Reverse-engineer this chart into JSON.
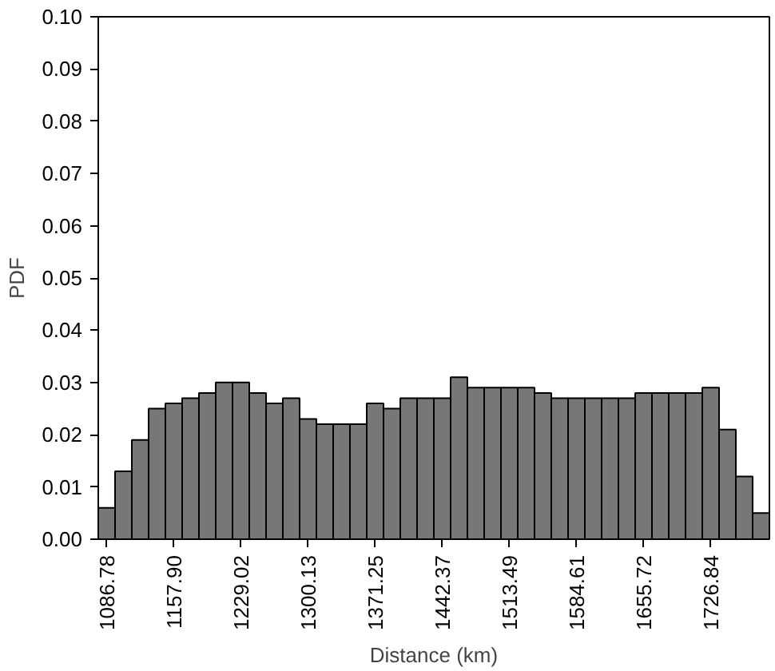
{
  "chart_data": {
    "type": "histogram",
    "xlabel": "Distance (km)",
    "ylabel": "PDF",
    "color": "#777777",
    "bins": [
      1077.89,
      1095.67,
      1113.45,
      1131.22,
      1149.0,
      1166.78,
      1184.56,
      1202.33,
      1220.11,
      1237.89,
      1255.67,
      1273.44,
      1291.22,
      1309.0,
      1326.78,
      1344.55,
      1362.33,
      1380.11,
      1397.89,
      1415.66,
      1433.44,
      1451.22,
      1469.0,
      1486.77,
      1504.55,
      1522.33,
      1540.11,
      1557.88,
      1575.66,
      1593.44,
      1611.22,
      1628.99,
      1646.77,
      1664.55,
      1682.33,
      1700.1,
      1717.88,
      1735.66,
      1753.44,
      1771.21,
      1788.99
    ],
    "values": [
      0.006,
      0.013,
      0.019,
      0.025,
      0.026,
      0.027,
      0.028,
      0.03,
      0.03,
      0.028,
      0.026,
      0.027,
      0.023,
      0.022,
      0.022,
      0.022,
      0.026,
      0.025,
      0.027,
      0.027,
      0.027,
      0.031,
      0.029,
      0.029,
      0.029,
      0.029,
      0.028,
      0.027,
      0.027,
      0.027,
      0.027,
      0.027,
      0.028,
      0.028,
      0.028,
      0.028,
      0.029,
      0.021,
      0.012,
      0.005
    ],
    "xlim": [
      1077.89,
      1788.99
    ],
    "ylim": [
      0,
      0.1
    ],
    "xticks": [
      {
        "value": 1086.78,
        "label": "1086.78"
      },
      {
        "value": 1157.9,
        "label": "1157.90"
      },
      {
        "value": 1229.02,
        "label": "1229.02"
      },
      {
        "value": 1300.13,
        "label": "1300.13"
      },
      {
        "value": 1371.25,
        "label": "1371.25"
      },
      {
        "value": 1442.37,
        "label": "1442.37"
      },
      {
        "value": 1513.49,
        "label": "1513.49"
      },
      {
        "value": 1584.61,
        "label": "1584.61"
      },
      {
        "value": 1655.72,
        "label": "1655.72"
      },
      {
        "value": 1726.84,
        "label": "1726.84"
      }
    ],
    "yticks": [
      {
        "value": 0,
        "label": "0.00"
      },
      {
        "value": 0.01,
        "label": "0.01"
      },
      {
        "value": 0.02,
        "label": "0.02"
      },
      {
        "value": 0.03,
        "label": "0.03"
      },
      {
        "value": 0.04,
        "label": "0.04"
      },
      {
        "value": 0.05,
        "label": "0.05"
      },
      {
        "value": 0.06,
        "label": "0.06"
      },
      {
        "value": 0.07,
        "label": "0.07"
      },
      {
        "value": 0.08,
        "label": "0.08"
      },
      {
        "value": 0.09,
        "label": "0.09"
      },
      {
        "value": 0.1,
        "label": "0.10"
      }
    ],
    "grid": false
  }
}
